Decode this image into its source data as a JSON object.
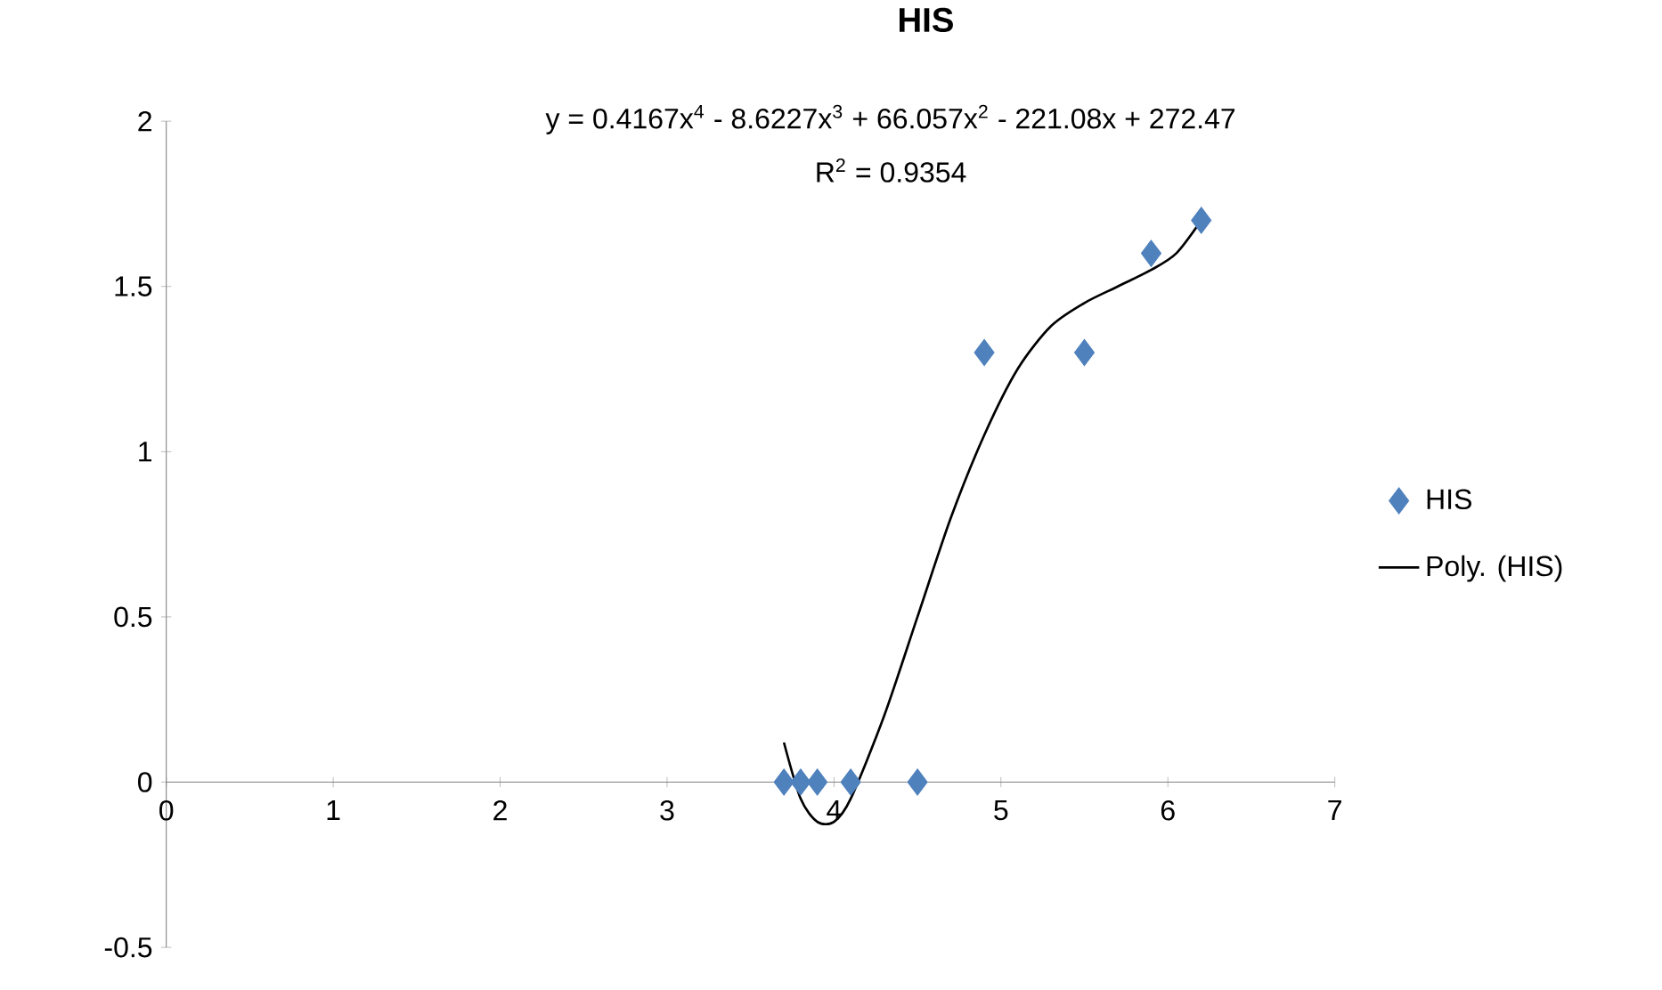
{
  "chart_data": {
    "type": "scatter",
    "title": "HIS",
    "annotations": [
      "y = 0.4167x$^{4}$ - 8.6227x$^{3}$ + 66.057x$^{2}$ - 221.08x + 272.47",
      "R$^{2}$ = 0.9354"
    ],
    "xlim": [
      0,
      7
    ],
    "xticks": [
      0,
      1,
      2,
      3,
      4,
      5,
      6,
      7
    ],
    "ylim": [
      -0.5,
      2
    ],
    "yticks": [
      -0.5,
      0,
      0.5,
      1,
      1.5,
      2
    ],
    "grid": false,
    "legend": "right",
    "series": [
      {
        "name": "HIS",
        "marker": "diamond",
        "color": "#4f81bd",
        "x": [
          3.7,
          3.8,
          3.9,
          4.1,
          4.5,
          4.9,
          5.5,
          5.9,
          6.2
        ],
        "values": [
          0,
          0,
          0,
          0,
          0,
          1.3,
          1.3,
          1.6,
          1.7
        ]
      },
      {
        "name": "Poly. (HIS)",
        "type": "line",
        "marker": "none",
        "line_style": "solid",
        "color": "#000000",
        "x": [
          3.7,
          3.8,
          3.9,
          4.0,
          4.1,
          4.3,
          4.5,
          4.7,
          4.9,
          5.1,
          5.3,
          5.5,
          5.7,
          5.9,
          6.05,
          6.2
        ],
        "values": [
          0.12,
          -0.05,
          -0.12,
          -0.12,
          -0.05,
          0.2,
          0.5,
          0.8,
          1.05,
          1.25,
          1.38,
          1.45,
          1.5,
          1.55,
          1.6,
          1.7
        ]
      }
    ]
  }
}
